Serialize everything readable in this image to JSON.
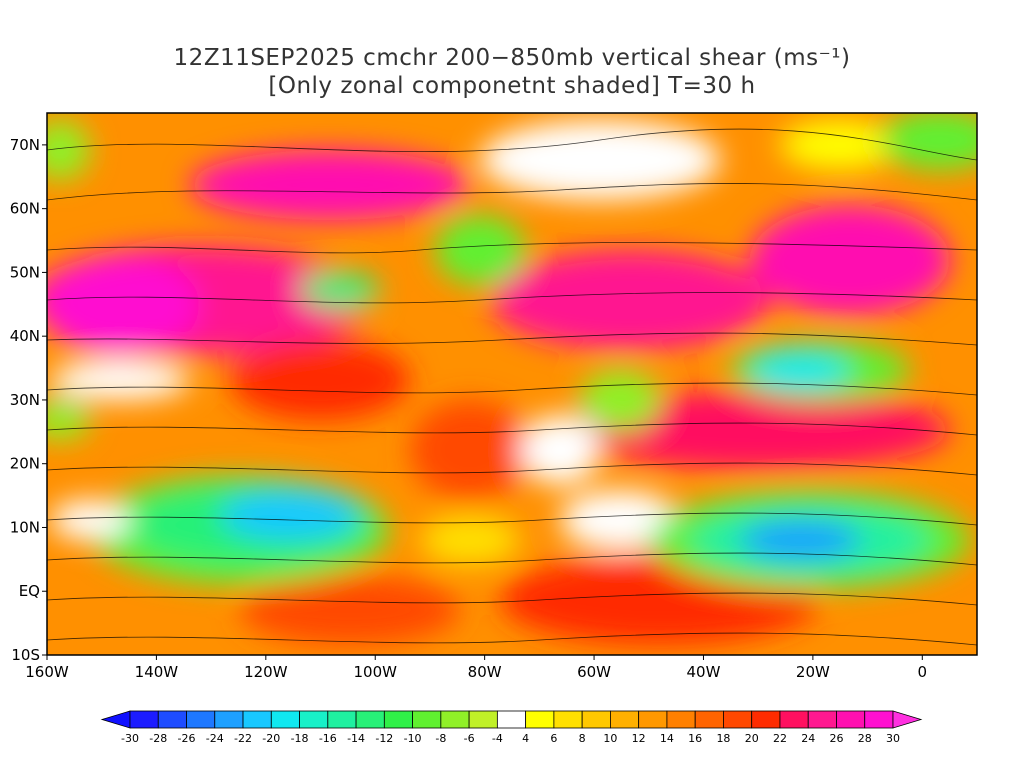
{
  "title": {
    "line1": "12Z11SEP2025 cmchr 200−850mb vertical shear (ms⁻¹)",
    "line2": "[Only zonal componetnt shaded] T=30 h"
  },
  "map": {
    "lon_range": [
      -160,
      10
    ],
    "lat_range": [
      -10,
      75
    ],
    "lat_labels": [
      "70N",
      "60N",
      "50N",
      "40N",
      "30N",
      "20N",
      "10N",
      "EQ",
      "10S"
    ],
    "lat_values": [
      70,
      60,
      50,
      40,
      30,
      20,
      10,
      0,
      -10
    ],
    "lon_labels": [
      "160W",
      "140W",
      "120W",
      "100W",
      "80W",
      "60W",
      "40W",
      "20W",
      "0"
    ],
    "lon_values": [
      -160,
      -140,
      -120,
      -100,
      -80,
      -60,
      -40,
      -20,
      0
    ]
  },
  "colorbar": {
    "labels": [
      "-30",
      "-28",
      "-26",
      "-24",
      "-22",
      "-20",
      "-18",
      "-16",
      "-14",
      "-12",
      "-10",
      "-8",
      "-6",
      "-4",
      "4",
      "6",
      "8",
      "10",
      "12",
      "14",
      "16",
      "18",
      "20",
      "22",
      "24",
      "26",
      "28",
      "30"
    ],
    "colors": [
      "#1c1cff",
      "#1e4cff",
      "#1e78ff",
      "#1ea0ff",
      "#18c8ff",
      "#10e8f0",
      "#18f0c8",
      "#20f0a0",
      "#28f078",
      "#30f048",
      "#60f030",
      "#90f028",
      "#c0f028",
      "#ffffff",
      "#ffff00",
      "#ffe000",
      "#ffc800",
      "#ffb000",
      "#ff9800",
      "#ff8000",
      "#ff6400",
      "#ff4800",
      "#ff2c00",
      "#ff1060",
      "#ff1890",
      "#ff10b0",
      "#ff10d0"
    ],
    "left_arrow_color": "#1010ff",
    "right_arrow_color": "#ff30e0"
  }
}
